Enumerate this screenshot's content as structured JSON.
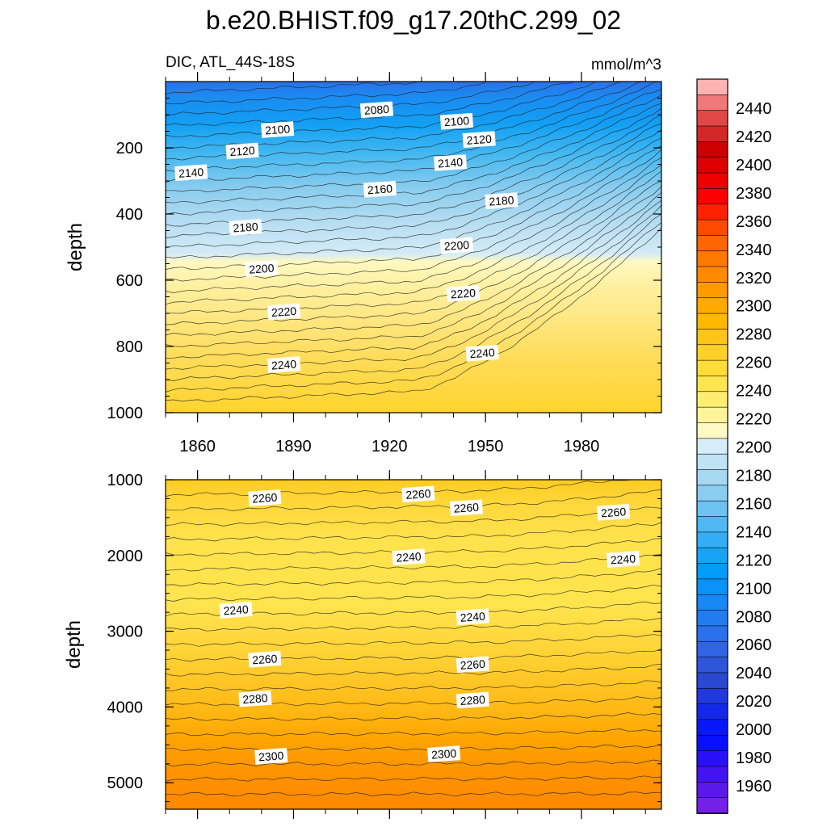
{
  "chart_data": {
    "type": "heatmap",
    "title": "b.e20.BHIST.f09_g17.20thC.299_02",
    "subtitle_left": "DIC, ATL_44S-18S",
    "subtitle_right": "mmol/m^3",
    "xlabel": "",
    "ylabel": "depth",
    "x_range": [
      1850,
      2005
    ],
    "x_ticks": [
      1860,
      1890,
      1920,
      1950,
      1980
    ],
    "panels": [
      {
        "name": "upper",
        "ylim": [
          0,
          1000
        ],
        "y_ticks": [
          200,
          400,
          600,
          800,
          1000
        ],
        "contour_labels": [
          {
            "value": "2080",
            "year": 1916,
            "depth": 85
          },
          {
            "value": "2100",
            "year": 1885,
            "depth": 145
          },
          {
            "value": "2100",
            "year": 1941,
            "depth": 120
          },
          {
            "value": "2120",
            "year": 1874,
            "depth": 210
          },
          {
            "value": "2120",
            "year": 1948,
            "depth": 175
          },
          {
            "value": "2140",
            "year": 1858,
            "depth": 275
          },
          {
            "value": "2140",
            "year": 1939,
            "depth": 245
          },
          {
            "value": "2160",
            "year": 1917,
            "depth": 325
          },
          {
            "value": "2180",
            "year": 1875,
            "depth": 440
          },
          {
            "value": "2180",
            "year": 1955,
            "depth": 360
          },
          {
            "value": "2200",
            "year": 1880,
            "depth": 565
          },
          {
            "value": "2200",
            "year": 1941,
            "depth": 495
          },
          {
            "value": "2220",
            "year": 1887,
            "depth": 695
          },
          {
            "value": "2220",
            "year": 1943,
            "depth": 640
          },
          {
            "value": "2240",
            "year": 1887,
            "depth": 855
          },
          {
            "value": "2240",
            "year": 1949,
            "depth": 820
          }
        ]
      },
      {
        "name": "lower",
        "ylim": [
          1000,
          5350
        ],
        "y_ticks": [
          1000,
          2000,
          3000,
          4000,
          5000
        ],
        "contour_labels": [
          {
            "value": "2260",
            "year": 1881,
            "depth": 1240
          },
          {
            "value": "2260",
            "year": 1929,
            "depth": 1190
          },
          {
            "value": "2260",
            "year": 1944,
            "depth": 1370
          },
          {
            "value": "2260",
            "year": 1990,
            "depth": 1430
          },
          {
            "value": "2240",
            "year": 1926,
            "depth": 2020
          },
          {
            "value": "2240",
            "year": 1993,
            "depth": 2050
          },
          {
            "value": "2240",
            "year": 1872,
            "depth": 2720
          },
          {
            "value": "2240",
            "year": 1946,
            "depth": 2810
          },
          {
            "value": "2260",
            "year": 1881,
            "depth": 3370
          },
          {
            "value": "2260",
            "year": 1946,
            "depth": 3440
          },
          {
            "value": "2280",
            "year": 1878,
            "depth": 3890
          },
          {
            "value": "2280",
            "year": 1946,
            "depth": 3910
          },
          {
            "value": "2300",
            "year": 1883,
            "depth": 4650
          },
          {
            "value": "2300",
            "year": 1937,
            "depth": 4620
          }
        ]
      }
    ],
    "colorbar": {
      "labels": [
        "2440",
        "2420",
        "2400",
        "2380",
        "2360",
        "2340",
        "2320",
        "2300",
        "2280",
        "2260",
        "2240",
        "2220",
        "2200",
        "2180",
        "2160",
        "2140",
        "2120",
        "2100",
        "2080",
        "2060",
        "2040",
        "2020",
        "2000",
        "1980",
        "1960"
      ],
      "colors": [
        "#ffb4b4",
        "#f07878",
        "#e04848",
        "#d42828",
        "#cc0000",
        "#dd0000",
        "#ee0000",
        "#ff0000",
        "#ff2200",
        "#ff4a00",
        "#ff6600",
        "#ff7800",
        "#ff8a00",
        "#ff9a00",
        "#ffaa00",
        "#ffb800",
        "#ffc418",
        "#ffd028",
        "#ffdc38",
        "#ffe650",
        "#ffee70",
        "#fff49a",
        "#fffac4",
        "#d6ecf8",
        "#bfe2f4",
        "#a6d8f2",
        "#8acdf0",
        "#6cc2f0",
        "#4fb8f2",
        "#33aef4",
        "#18a4f6",
        "#009cf8",
        "#0a92f6",
        "#1888f4",
        "#227cf0",
        "#2a70ea",
        "#3064e2",
        "#2e56d8",
        "#2a48d0",
        "#2038dc",
        "#1428ea",
        "#0818f8",
        "#0a10ff",
        "#2a10f8",
        "#4414f0",
        "#5c18ea",
        "#7420e6"
      ]
    }
  }
}
